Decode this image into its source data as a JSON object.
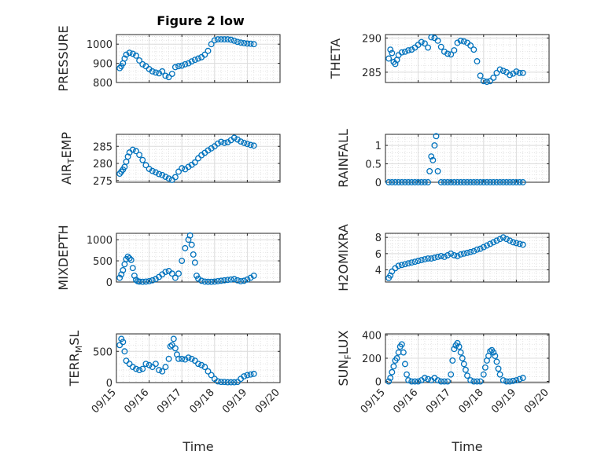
{
  "figure": {
    "title": "Figure 2 low",
    "marker_color": "#0072BD",
    "x_ticks": [
      "09/15",
      "09/16",
      "09/17",
      "09/18",
      "09/19",
      "09/20"
    ],
    "x_label": "Time",
    "grid": true,
    "minor_grid": true
  },
  "chart_data": [
    {
      "type": "scatter",
      "ylabel": "PRESSURE",
      "ylim": [
        800,
        1050
      ],
      "yticks": [
        800,
        900,
        1000
      ],
      "x": [
        0.1,
        0.15,
        0.2,
        0.25,
        0.3,
        0.4,
        0.5,
        0.6,
        0.7,
        0.8,
        0.9,
        1.0,
        1.1,
        1.2,
        1.3,
        1.4,
        1.5,
        1.6,
        1.7,
        1.8,
        1.9,
        2.0,
        2.1,
        2.2,
        2.3,
        2.4,
        2.5,
        2.6,
        2.7,
        2.8,
        2.9,
        3.0,
        3.1,
        3.2,
        3.3,
        3.4,
        3.5,
        3.6,
        3.7,
        3.8,
        3.9,
        4.0,
        4.1,
        4.2
      ],
      "y": [
        875,
        885,
        900,
        925,
        945,
        955,
        950,
        940,
        915,
        895,
        885,
        870,
        858,
        852,
        848,
        858,
        835,
        828,
        845,
        880,
        885,
        888,
        895,
        900,
        910,
        918,
        925,
        932,
        945,
        965,
        1000,
        1020,
        1025,
        1025,
        1025,
        1025,
        1023,
        1018,
        1012,
        1008,
        1005,
        1003,
        1002,
        1000
      ]
    },
    {
      "type": "scatter",
      "ylabel": "THETA",
      "ylim": [
        283.5,
        290.5
      ],
      "yticks": [
        285,
        290
      ],
      "x": [
        0.1,
        0.15,
        0.2,
        0.25,
        0.3,
        0.35,
        0.4,
        0.5,
        0.6,
        0.7,
        0.8,
        0.9,
        1.0,
        1.1,
        1.2,
        1.3,
        1.4,
        1.5,
        1.6,
        1.7,
        1.8,
        1.9,
        2.0,
        2.1,
        2.2,
        2.3,
        2.4,
        2.5,
        2.6,
        2.7,
        2.8,
        2.9,
        3.0,
        3.1,
        3.2,
        3.3,
        3.4,
        3.5,
        3.6,
        3.7,
        3.8,
        3.9,
        4.0,
        4.1,
        4.2
      ],
      "y": [
        287.0,
        288.3,
        287.8,
        286.5,
        286.2,
        286.8,
        287.5,
        287.9,
        288.0,
        288.2,
        288.3,
        288.6,
        289.0,
        289.4,
        289.2,
        288.6,
        290.1,
        290.0,
        289.6,
        288.7,
        288.0,
        287.7,
        287.6,
        288.2,
        289.3,
        289.6,
        289.5,
        289.3,
        288.9,
        288.3,
        286.6,
        284.5,
        283.7,
        283.6,
        283.7,
        284.2,
        284.9,
        285.4,
        285.2,
        285.0,
        284.6,
        284.8,
        285.1,
        284.9,
        284.9
      ]
    },
    {
      "type": "scatter",
      "ylabel": "AIR_TEMP",
      "ylim": [
        274.5,
        288.5
      ],
      "yticks": [
        275,
        280,
        285
      ],
      "x": [
        0.1,
        0.15,
        0.2,
        0.25,
        0.3,
        0.35,
        0.4,
        0.5,
        0.6,
        0.7,
        0.8,
        0.9,
        1.0,
        1.1,
        1.2,
        1.3,
        1.4,
        1.5,
        1.6,
        1.7,
        1.8,
        1.9,
        2.0,
        2.1,
        2.2,
        2.3,
        2.4,
        2.5,
        2.6,
        2.7,
        2.8,
        2.9,
        3.0,
        3.1,
        3.2,
        3.3,
        3.4,
        3.5,
        3.6,
        3.7,
        3.8,
        3.9,
        4.0,
        4.1,
        4.2
      ],
      "y": [
        277.0,
        277.6,
        278.2,
        279.0,
        280.5,
        282.0,
        283.2,
        284.0,
        283.6,
        282.5,
        281.0,
        279.5,
        278.4,
        277.8,
        277.4,
        276.9,
        276.6,
        276.1,
        275.6,
        275.2,
        276.0,
        277.6,
        278.6,
        278.3,
        279.0,
        279.6,
        280.3,
        281.5,
        282.4,
        283.1,
        283.8,
        284.4,
        285.0,
        285.8,
        286.3,
        286.0,
        286.2,
        286.8,
        287.5,
        287.0,
        286.4,
        286.0,
        285.7,
        285.4,
        285.2
      ]
    },
    {
      "type": "scatter",
      "ylabel": "RAINFALL",
      "ylim": [
        0,
        1.3
      ],
      "yticks": [
        0,
        0.5,
        1
      ],
      "x": [
        0.1,
        0.2,
        0.3,
        0.4,
        0.5,
        0.6,
        0.7,
        0.8,
        0.9,
        1.0,
        1.1,
        1.2,
        1.3,
        1.35,
        1.4,
        1.45,
        1.5,
        1.55,
        1.6,
        1.7,
        1.8,
        1.9,
        2.0,
        2.1,
        2.2,
        2.3,
        2.4,
        2.5,
        2.6,
        2.7,
        2.8,
        2.9,
        3.0,
        3.1,
        3.2,
        3.3,
        3.4,
        3.5,
        3.6,
        3.7,
        3.8,
        3.9,
        4.0,
        4.1,
        4.2
      ],
      "y": [
        0,
        0,
        0,
        0,
        0,
        0,
        0,
        0,
        0,
        0,
        0,
        0,
        0,
        0.3,
        0.7,
        0.6,
        1.0,
        1.25,
        0.3,
        0,
        0,
        0,
        0,
        0,
        0,
        0,
        0,
        0,
        0,
        0,
        0,
        0,
        0,
        0,
        0,
        0,
        0,
        0,
        0,
        0,
        0,
        0,
        0,
        0,
        0
      ]
    },
    {
      "type": "scatter",
      "ylabel": "MIXDEPTH",
      "ylim": [
        0,
        1150
      ],
      "yticks": [
        0,
        500,
        1000
      ],
      "x": [
        0.1,
        0.15,
        0.2,
        0.25,
        0.3,
        0.35,
        0.4,
        0.45,
        0.5,
        0.55,
        0.6,
        0.65,
        0.7,
        0.8,
        0.9,
        1.0,
        1.1,
        1.2,
        1.3,
        1.4,
        1.5,
        1.6,
        1.7,
        1.8,
        1.9,
        2.0,
        2.1,
        2.2,
        2.25,
        2.3,
        2.35,
        2.4,
        2.45,
        2.5,
        2.6,
        2.7,
        2.8,
        2.9,
        3.0,
        3.1,
        3.2,
        3.3,
        3.4,
        3.5,
        3.6,
        3.7,
        3.8,
        3.9,
        4.0,
        4.1,
        4.2
      ],
      "y": [
        100,
        180,
        280,
        420,
        540,
        600,
        560,
        520,
        330,
        150,
        50,
        20,
        10,
        5,
        10,
        20,
        40,
        70,
        120,
        180,
        240,
        260,
        200,
        100,
        200,
        500,
        800,
        1000,
        1100,
        880,
        650,
        460,
        150,
        80,
        30,
        10,
        5,
        5,
        10,
        20,
        30,
        40,
        50,
        60,
        70,
        40,
        20,
        30,
        60,
        100,
        150
      ]
    },
    {
      "type": "scatter",
      "ylabel": "H2OMIXRA",
      "ylim": [
        2.5,
        8.5
      ],
      "yticks": [
        4,
        6,
        8
      ],
      "x": [
        0.1,
        0.15,
        0.2,
        0.3,
        0.4,
        0.5,
        0.6,
        0.7,
        0.8,
        0.9,
        1.0,
        1.1,
        1.2,
        1.3,
        1.4,
        1.5,
        1.6,
        1.7,
        1.8,
        1.9,
        2.0,
        2.1,
        2.2,
        2.3,
        2.4,
        2.5,
        2.6,
        2.7,
        2.8,
        2.9,
        3.0,
        3.1,
        3.2,
        3.3,
        3.4,
        3.5,
        3.6,
        3.7,
        3.8,
        3.9,
        4.0,
        4.1,
        4.2
      ],
      "y": [
        3.0,
        3.3,
        3.8,
        4.2,
        4.5,
        4.6,
        4.7,
        4.8,
        4.9,
        5.0,
        5.1,
        5.2,
        5.3,
        5.4,
        5.4,
        5.5,
        5.6,
        5.7,
        5.6,
        5.8,
        6.0,
        5.8,
        5.7,
        5.9,
        6.0,
        6.1,
        6.2,
        6.3,
        6.5,
        6.6,
        6.8,
        7.0,
        7.2,
        7.4,
        7.6,
        7.8,
        8.0,
        7.8,
        7.6,
        7.4,
        7.3,
        7.2,
        7.1
      ]
    },
    {
      "type": "scatter",
      "ylabel": "TERR_MSL",
      "ylim": [
        0,
        780
      ],
      "yticks": [
        0,
        500
      ],
      "x": [
        0.1,
        0.15,
        0.2,
        0.25,
        0.3,
        0.4,
        0.5,
        0.6,
        0.7,
        0.8,
        0.9,
        1.0,
        1.1,
        1.2,
        1.3,
        1.4,
        1.5,
        1.6,
        1.65,
        1.7,
        1.75,
        1.8,
        1.85,
        1.9,
        2.0,
        2.1,
        2.2,
        2.3,
        2.4,
        2.5,
        2.6,
        2.7,
        2.8,
        2.9,
        3.0,
        3.1,
        3.2,
        3.3,
        3.4,
        3.5,
        3.6,
        3.7,
        3.8,
        3.9,
        4.0,
        4.1,
        4.2
      ],
      "y": [
        600,
        700,
        650,
        500,
        350,
        300,
        250,
        220,
        200,
        220,
        300,
        280,
        250,
        300,
        200,
        180,
        250,
        380,
        580,
        600,
        700,
        550,
        450,
        380,
        380,
        370,
        400,
        380,
        350,
        300,
        280,
        250,
        180,
        120,
        60,
        20,
        10,
        10,
        5,
        5,
        5,
        10,
        60,
        100,
        120,
        130,
        140
      ]
    },
    {
      "type": "scatter",
      "ylabel": "SUN_FLUX",
      "ylim": [
        -10,
        410
      ],
      "yticks": [
        0,
        200,
        400
      ],
      "x": [
        0.1,
        0.15,
        0.2,
        0.25,
        0.3,
        0.35,
        0.4,
        0.45,
        0.5,
        0.55,
        0.6,
        0.65,
        0.7,
        0.8,
        0.9,
        1.0,
        1.1,
        1.2,
        1.3,
        1.4,
        1.5,
        1.6,
        1.7,
        1.8,
        1.9,
        2.0,
        2.05,
        2.1,
        2.15,
        2.2,
        2.25,
        2.3,
        2.35,
        2.4,
        2.45,
        2.5,
        2.6,
        2.7,
        2.8,
        2.9,
        3.0,
        3.05,
        3.1,
        3.15,
        3.2,
        3.25,
        3.3,
        3.35,
        3.4,
        3.45,
        3.5,
        3.6,
        3.7,
        3.8,
        3.9,
        4.0,
        4.1,
        4.2
      ],
      "y": [
        0,
        30,
        80,
        130,
        180,
        200,
        250,
        300,
        320,
        250,
        150,
        60,
        10,
        0,
        0,
        0,
        10,
        30,
        20,
        10,
        30,
        10,
        0,
        0,
        0,
        60,
        180,
        280,
        310,
        330,
        300,
        250,
        200,
        150,
        100,
        50,
        10,
        0,
        0,
        0,
        60,
        120,
        180,
        220,
        260,
        270,
        250,
        220,
        170,
        110,
        60,
        10,
        0,
        0,
        5,
        10,
        20,
        30
      ]
    }
  ]
}
